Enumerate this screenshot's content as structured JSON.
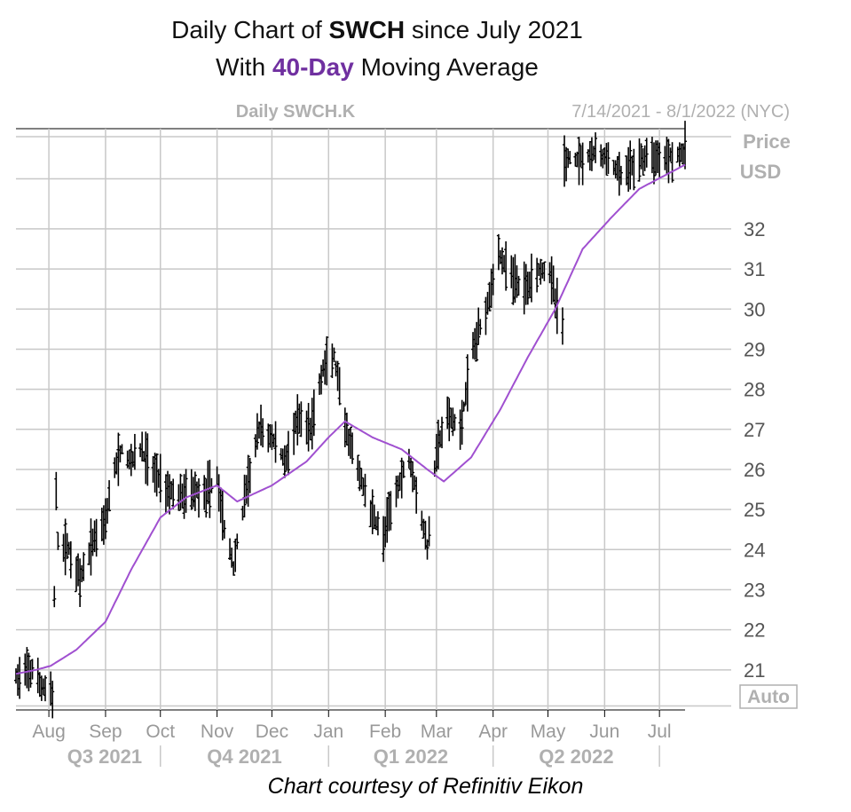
{
  "header": {
    "title_prefix": "Daily Chart of",
    "title_ticker": "SWCH",
    "title_suffix": "since July 2021",
    "subtitle_prefix": "With",
    "subtitle_highlight": "40-Day",
    "subtitle_suffix": "Moving Average"
  },
  "footer": {
    "credit": "Chart courtesy of Refinitiv Eikon"
  },
  "colors": {
    "ohlc": "#000000",
    "moving_average": "#a050d0",
    "grid": "#c8c8c8",
    "muted_text": "#b0b0b0",
    "highlight": "#7030a0"
  },
  "chart_data": {
    "type": "ohlc",
    "instrument_label": "Daily SWCH.K",
    "date_range_label": "7/14/2021 - 8/1/2022 (NYC)",
    "y_axis_label": [
      "Price",
      "USD"
    ],
    "y_ticks": [
      21,
      22,
      23,
      24,
      25,
      26,
      27,
      28,
      29,
      30,
      31,
      32
    ],
    "ylim": [
      20,
      34.5
    ],
    "autoscale_label": "Auto",
    "x_range": [
      "2021-07-14",
      "2022-07-15"
    ],
    "month_ticks": [
      {
        "label": "Aug",
        "date": "2021-08-01"
      },
      {
        "label": "Sep",
        "date": "2021-09-01"
      },
      {
        "label": "Oct",
        "date": "2021-10-01"
      },
      {
        "label": "Nov",
        "date": "2021-11-01"
      },
      {
        "label": "Dec",
        "date": "2021-12-01"
      },
      {
        "label": "Jan",
        "date": "2022-01-01"
      },
      {
        "label": "Feb",
        "date": "2022-02-01"
      },
      {
        "label": "Mar",
        "date": "2022-03-01"
      },
      {
        "label": "Apr",
        "date": "2022-04-01"
      },
      {
        "label": "May",
        "date": "2022-05-01"
      },
      {
        "label": "Jun",
        "date": "2022-06-01"
      },
      {
        "label": "Jul",
        "date": "2022-07-01"
      }
    ],
    "quarter_labels": [
      {
        "label": "Q3 2021",
        "start": "2021-08-01",
        "end": "2021-10-01"
      },
      {
        "label": "Q4 2021",
        "start": "2021-10-01",
        "end": "2022-01-01"
      },
      {
        "label": "Q1 2022",
        "start": "2022-01-01",
        "end": "2022-04-01"
      },
      {
        "label": "Q2 2022",
        "start": "2022-04-01",
        "end": "2022-07-01"
      }
    ],
    "quarter_dividers": [
      "2021-10-01",
      "2022-01-01",
      "2022-04-01",
      "2022-07-01"
    ],
    "price_anchors": [
      [
        "2021-07-14",
        20.8
      ],
      [
        "2021-07-20",
        20.9
      ],
      [
        "2021-07-23",
        21.0
      ],
      [
        "2021-07-27",
        20.6
      ],
      [
        "2021-08-02",
        20.5
      ],
      [
        "2021-08-03",
        20.3
      ],
      [
        "2021-08-05",
        25.3
      ],
      [
        "2021-08-06",
        24.2
      ],
      [
        "2021-08-12",
        24.0
      ],
      [
        "2021-08-18",
        23.2
      ],
      [
        "2021-08-25",
        24.2
      ],
      [
        "2021-09-01",
        24.8
      ],
      [
        "2021-09-06",
        26.0
      ],
      [
        "2021-09-10",
        26.5
      ],
      [
        "2021-09-14",
        26.2
      ],
      [
        "2021-09-20",
        26.5
      ],
      [
        "2021-09-27",
        26.0
      ],
      [
        "2021-10-05",
        25.5
      ],
      [
        "2021-10-12",
        25.3
      ],
      [
        "2021-10-19",
        25.5
      ],
      [
        "2021-10-26",
        25.4
      ],
      [
        "2021-11-01",
        25.8
      ],
      [
        "2021-11-05",
        24.5
      ],
      [
        "2021-11-10",
        23.6
      ],
      [
        "2021-11-17",
        25.5
      ],
      [
        "2021-11-24",
        27.0
      ],
      [
        "2021-12-01",
        26.8
      ],
      [
        "2021-12-08",
        26.2
      ],
      [
        "2021-12-15",
        27.2
      ],
      [
        "2021-12-22",
        27.0
      ],
      [
        "2021-12-29",
        28.5
      ],
      [
        "2022-01-04",
        28.8
      ],
      [
        "2022-01-10",
        27.0
      ],
      [
        "2022-01-17",
        26.0
      ],
      [
        "2022-01-24",
        25.0
      ],
      [
        "2022-01-31",
        24.3
      ],
      [
        "2022-02-07",
        25.5
      ],
      [
        "2022-02-14",
        26.3
      ],
      [
        "2022-02-18",
        25.5
      ],
      [
        "2022-02-24",
        24.0
      ],
      [
        "2022-03-01",
        26.5
      ],
      [
        "2022-03-07",
        27.3
      ],
      [
        "2022-03-14",
        27.0
      ],
      [
        "2022-03-21",
        29.0
      ],
      [
        "2022-03-28",
        30.0
      ],
      [
        "2022-04-04",
        31.4
      ],
      [
        "2022-04-11",
        30.8
      ],
      [
        "2022-04-18",
        30.5
      ],
      [
        "2022-04-25",
        31.0
      ],
      [
        "2022-05-02",
        31.0
      ],
      [
        "2022-05-05",
        30.2
      ],
      [
        "2022-05-09",
        29.6
      ],
      [
        "2022-05-10",
        33.7
      ],
      [
        "2022-05-20",
        33.8
      ],
      [
        "2022-05-27",
        33.9
      ],
      [
        "2022-06-03",
        33.7
      ],
      [
        "2022-06-10",
        33.3
      ],
      [
        "2022-06-17",
        33.6
      ],
      [
        "2022-06-24",
        33.8
      ],
      [
        "2022-07-01",
        33.8
      ],
      [
        "2022-07-15",
        33.9
      ]
    ],
    "moving_average_anchors": [
      [
        "2021-07-14",
        20.9
      ],
      [
        "2021-07-25",
        21.0
      ],
      [
        "2021-08-02",
        21.1
      ],
      [
        "2021-08-16",
        21.5
      ],
      [
        "2021-09-01",
        22.2
      ],
      [
        "2021-09-15",
        23.5
      ],
      [
        "2021-10-01",
        24.8
      ],
      [
        "2021-10-15",
        25.3
      ],
      [
        "2021-11-01",
        25.6
      ],
      [
        "2021-11-12",
        25.2
      ],
      [
        "2021-12-01",
        25.6
      ],
      [
        "2021-12-20",
        26.2
      ],
      [
        "2022-01-01",
        26.8
      ],
      [
        "2022-01-10",
        27.2
      ],
      [
        "2022-01-25",
        26.8
      ],
      [
        "2022-02-10",
        26.5
      ],
      [
        "2022-02-24",
        26.0
      ],
      [
        "2022-03-05",
        25.7
      ],
      [
        "2022-03-20",
        26.3
      ],
      [
        "2022-04-05",
        27.5
      ],
      [
        "2022-04-20",
        28.8
      ],
      [
        "2022-05-05",
        30.0
      ],
      [
        "2022-05-20",
        31.5
      ],
      [
        "2022-06-05",
        32.3
      ],
      [
        "2022-06-20",
        33.0
      ],
      [
        "2022-07-15",
        33.6
      ]
    ]
  }
}
